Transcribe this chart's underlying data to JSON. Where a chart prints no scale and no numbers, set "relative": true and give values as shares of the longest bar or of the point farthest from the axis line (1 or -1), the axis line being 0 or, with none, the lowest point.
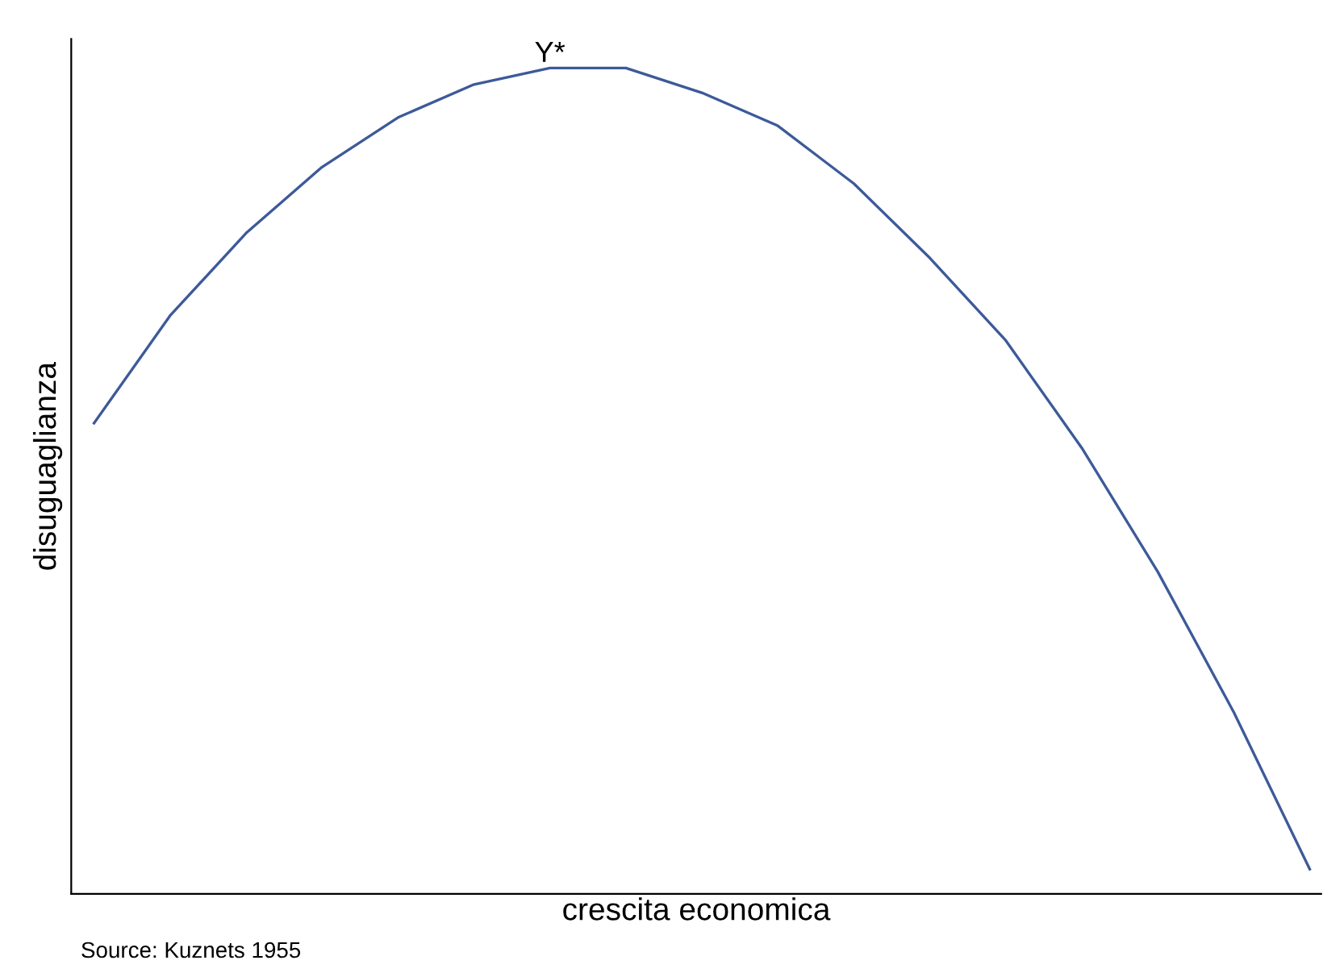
{
  "chart_data": {
    "type": "line",
    "relative": true,
    "xlabel": "crescita economica",
    "ylabel": "disuguaglianza",
    "categories": [
      null,
      null,
      null,
      null,
      null,
      null,
      null,
      null,
      null,
      null,
      null,
      null,
      null,
      null,
      null,
      null,
      null
    ],
    "series": [
      {
        "color": "#3d5a99",
        "values": [
          0.57,
          0.7,
          0.8,
          0.88,
          0.94,
          0.98,
          1.0,
          1.0,
          0.97,
          0.93,
          0.86,
          0.77,
          0.67,
          0.54,
          0.39,
          0.22,
          0.03
        ]
      }
    ],
    "annotations": [
      {
        "text": "Y*",
        "y": 1.0
      },
      "Source: Kuznets 1955"
    ],
    "grid": false,
    "marker": "none",
    "line_style": "solid"
  }
}
